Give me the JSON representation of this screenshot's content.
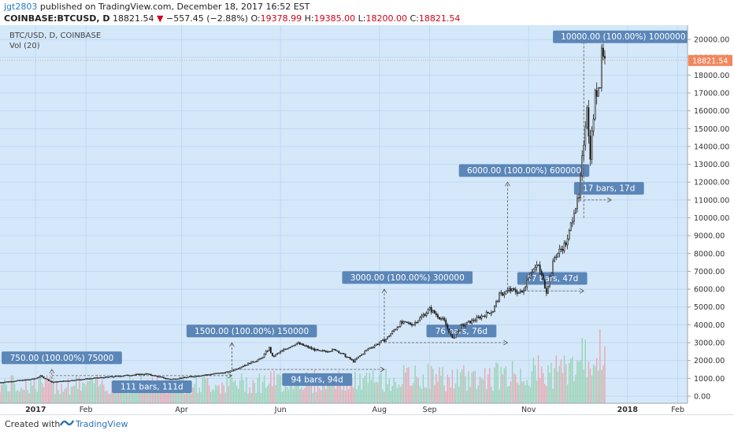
{
  "header": {
    "user": "jgt2803",
    "published": "published on TradingView.com, December 18, 2017 16:52 EST",
    "symbol_line": "COINBASE:BTCUSD, D",
    "last": "18821.54",
    "change": "−557.45 (−2.88%)",
    "o_label": "O:",
    "o_val": "19378.99",
    "h_label": "H:",
    "h_val": "19385.00",
    "l_label": "L:",
    "l_val": "18200.00",
    "c_label": "C:",
    "c_val": "18821.54"
  },
  "legend": {
    "title": "BTC/USD, D, COINBASE",
    "vol": "Vol (20)"
  },
  "footer": {
    "created": "Created with",
    "brand": "TradingView"
  },
  "colors": {
    "bg": "#d5e8fa",
    "grid": "#bfd8f0",
    "price_line": "#e0a890",
    "badge": "#5b86b8",
    "badge_text": "#ffffff",
    "last_badge": "#f2875d",
    "candle": "#1c1c1c",
    "vol_up": "#9ad3b4",
    "vol_down": "#e8a9b0"
  },
  "chart_data": {
    "type": "candlestick",
    "title": "BTC/USD, D, COINBASE",
    "y_axis": {
      "range": [
        -400,
        20800
      ],
      "ticks": [
        0,
        1000,
        2000,
        3000,
        4000,
        5000,
        6000,
        7000,
        8000,
        9000,
        10000,
        11000,
        12000,
        13000,
        14000,
        15000,
        16000,
        17000,
        18000,
        19000,
        20000
      ],
      "tick_labels": [
        "0.00",
        "1000.00",
        "2000.00",
        "3000.00",
        "4000.00",
        "5000.00",
        "6000.00",
        "7000.00",
        "8000.00",
        "9000.00",
        "10000.00",
        "11000.00",
        "12000.00",
        "13000.00",
        "14000.00",
        "15000.00",
        "16000.00",
        "17000.00",
        "18000.00",
        "19000.00",
        "20000.00"
      ]
    },
    "x_axis": {
      "start": "2016-12-10",
      "end": "2018-02-07",
      "ticks": [
        {
          "date": "2017-01-01",
          "label": "2017",
          "bold": true
        },
        {
          "date": "2017-02-01",
          "label": "Feb",
          "bold": false
        },
        {
          "date": "2017-04-01",
          "label": "Apr",
          "bold": false
        },
        {
          "date": "2017-06-01",
          "label": "Jun",
          "bold": false
        },
        {
          "date": "2017-08-01",
          "label": "Aug",
          "bold": false
        },
        {
          "date": "2017-09-01",
          "label": "Sep",
          "bold": false
        },
        {
          "date": "2017-11-01",
          "label": "Nov",
          "bold": false
        },
        {
          "date": "2018-01-01",
          "label": "2018",
          "bold": true
        },
        {
          "date": "2018-02-01",
          "label": "Feb",
          "bold": false
        }
      ]
    },
    "last_price": 18821.54,
    "last_price_label": "18821.54",
    "price_path": [
      [
        "2016-12-10",
        770
      ],
      [
        "2016-12-31",
        960
      ],
      [
        "2017-01-04",
        1130
      ],
      [
        "2017-01-11",
        780
      ],
      [
        "2017-01-31",
        960
      ],
      [
        "2017-02-28",
        1180
      ],
      [
        "2017-03-10",
        1250
      ],
      [
        "2017-03-25",
        940
      ],
      [
        "2017-04-15",
        1190
      ],
      [
        "2017-04-30",
        1350
      ],
      [
        "2017-05-10",
        1750
      ],
      [
        "2017-05-20",
        2100
      ],
      [
        "2017-05-25",
        2700
      ],
      [
        "2017-05-27",
        2200
      ],
      [
        "2017-06-05",
        2700
      ],
      [
        "2017-06-11",
        2980
      ],
      [
        "2017-06-25",
        2500
      ],
      [
        "2017-07-05",
        2600
      ],
      [
        "2017-07-16",
        1950
      ],
      [
        "2017-07-25",
        2650
      ],
      [
        "2017-08-05",
        3200
      ],
      [
        "2017-08-14",
        4100
      ],
      [
        "2017-08-22",
        4050
      ],
      [
        "2017-09-01",
        4880
      ],
      [
        "2017-09-10",
        4200
      ],
      [
        "2017-09-15",
        3200
      ],
      [
        "2017-09-20",
        3900
      ],
      [
        "2017-09-30",
        4350
      ],
      [
        "2017-10-10",
        4800
      ],
      [
        "2017-10-14",
        5650
      ],
      [
        "2017-10-20",
        5950
      ],
      [
        "2017-10-28",
        5800
      ],
      [
        "2017-11-02",
        7000
      ],
      [
        "2017-11-07",
        7300
      ],
      [
        "2017-11-12",
        5900
      ],
      [
        "2017-11-17",
        7800
      ],
      [
        "2017-11-25",
        8700
      ],
      [
        "2017-11-29",
        10500
      ],
      [
        "2017-12-02",
        11000
      ],
      [
        "2017-12-07",
        16500
      ],
      [
        "2017-12-08",
        14500
      ],
      [
        "2017-12-09",
        13600
      ],
      [
        "2017-12-12",
        16800
      ],
      [
        "2017-12-15",
        17700
      ],
      [
        "2017-12-16",
        19500
      ],
      [
        "2017-12-17",
        19300
      ],
      [
        "2017-12-18",
        18821.54
      ]
    ],
    "annotations": [
      {
        "type": "price-range",
        "label": "750.00 (100.00%) 75000",
        "date": "2017-01-11",
        "from": 750,
        "to": 1500,
        "label_at": [
          "2016-12-11",
          2150
        ]
      },
      {
        "type": "date-range",
        "label": "111 bars, 111d",
        "price": 1150,
        "from": "2017-01-11",
        "to": "2017-05-02",
        "label_at": [
          "2017-02-17",
          530
        ]
      },
      {
        "type": "price-range",
        "label": "1500.00 (100.00%) 150000",
        "date": "2017-05-02",
        "from": 1500,
        "to": 3000,
        "label_at": [
          "2017-04-04",
          3650
        ]
      },
      {
        "type": "date-range",
        "label": "94 bars, 94d",
        "price": 1500,
        "from": "2017-05-02",
        "to": "2017-08-04",
        "label_at": [
          "2017-06-02",
          930
        ]
      },
      {
        "type": "price-range",
        "label": "3000.00 (100.00%) 300000",
        "date": "2017-08-04",
        "from": 3000,
        "to": 6000,
        "label_at": [
          "2017-07-09",
          6650
        ]
      },
      {
        "type": "date-range",
        "label": "76 bars, 76d",
        "price": 3000,
        "from": "2017-08-04",
        "to": "2017-10-19",
        "label_at": [
          "2017-08-30",
          3650
        ]
      },
      {
        "type": "price-range",
        "label": "6000.00 (100.00%) 600000",
        "date": "2017-10-19",
        "from": 6000,
        "to": 12000,
        "label_at": [
          "2017-09-19",
          12650
        ]
      },
      {
        "type": "date-range",
        "label": "47 bars, 47d",
        "price": 5900,
        "from": "2017-10-19",
        "to": "2017-12-05",
        "label_at": [
          "2017-10-25",
          6600
        ]
      },
      {
        "type": "price-range",
        "label": "10000.00 (100.00%) 1000000",
        "date": "2017-12-05",
        "from": 10000,
        "to": 20000,
        "label_at": [
          "2017-11-16",
          20150
        ]
      },
      {
        "type": "date-range",
        "label": "17 bars, 17d",
        "price": 11000,
        "from": "2017-12-05",
        "to": "2017-12-22",
        "label_at": [
          "2017-11-29",
          11650
        ]
      }
    ],
    "volume_label": "Vol (20)"
  }
}
